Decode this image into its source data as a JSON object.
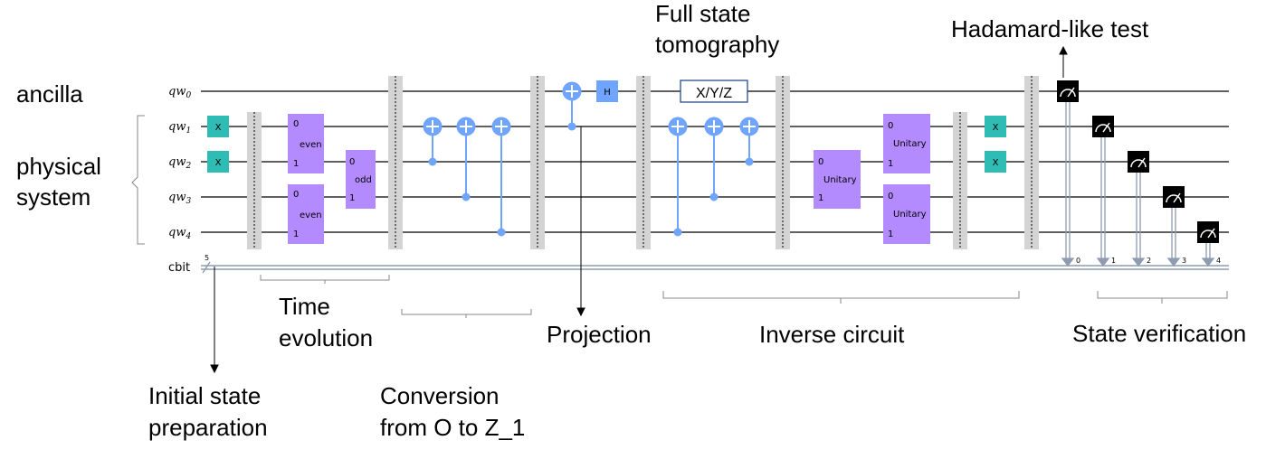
{
  "labels": {
    "ancilla": "ancilla",
    "physical_line1": "physical",
    "physical_line2": "system",
    "full_state_line1": "Full state",
    "full_state_line2": "tomography",
    "hadamard": "Hadamard-like test",
    "time_line1": "Time",
    "time_line2": "evolution",
    "projection": "Projection",
    "inverse": "Inverse circuit",
    "state_verification": "State verification",
    "initial_line1": "Initial state",
    "initial_line2": "preparation",
    "conversion_line1": "Conversion",
    "conversion_line2": "from O to Z_1"
  },
  "wires": {
    "qubit_prefix": "qw",
    "subscripts": [
      "0",
      "1",
      "2",
      "3",
      "4"
    ],
    "cbit": "cbit",
    "cbit_count": "5",
    "cbit_indices": [
      "0",
      "1",
      "2",
      "3",
      "4"
    ]
  },
  "gates": {
    "x": "X",
    "h": "H",
    "xyz": "X/Y/Z",
    "even": "even",
    "odd": "odd",
    "unitary": "Unitary",
    "port0": "0",
    "port1": "1"
  },
  "colors": {
    "x_gate": "#2ebcb5",
    "h_gate": "#6fa4ff",
    "cnot": "#6fa4ff",
    "custom_gate": "#b48bff",
    "barrier": "#d4d4d4",
    "measure": "#000000",
    "classical": "#8e9bb0"
  }
}
